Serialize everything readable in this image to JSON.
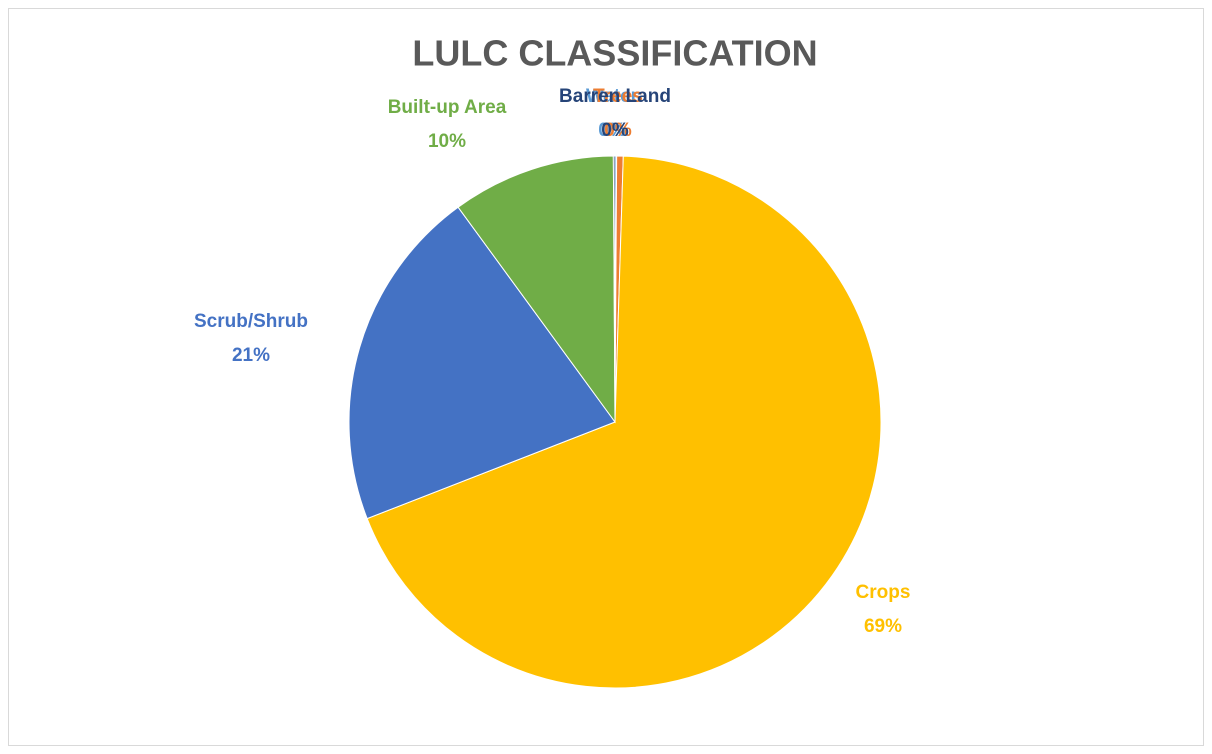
{
  "chart_data": {
    "type": "pie",
    "title": "LULC CLASSIFICATION",
    "categories": [
      "Water",
      "Trees",
      "Crops",
      "Scrub/Shrub",
      "Built-up Area",
      "Barren Land"
    ],
    "values": [
      0.1,
      0.4,
      69,
      21,
      10,
      0.1
    ],
    "value_labels": [
      "0%",
      "0%",
      "69%",
      "21%",
      "10%",
      "0%"
    ],
    "colors": [
      "#5B9BD5",
      "#ED7D31",
      "#FFC000",
      "#4472C4",
      "#70AD47",
      "#264478"
    ]
  }
}
